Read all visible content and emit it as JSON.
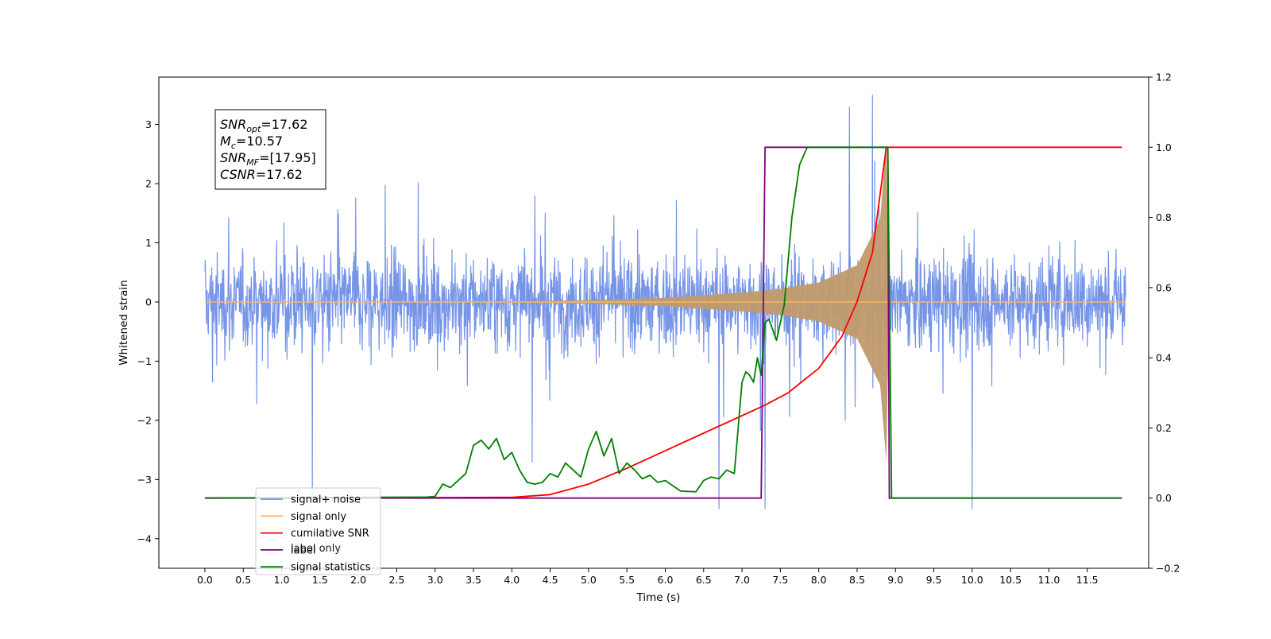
{
  "chart_data": {
    "type": "line",
    "xlabel": "Time (s)",
    "ylabel_left": "Whitened strain",
    "ylabel_right": "",
    "xlim": [
      -0.6,
      12.3
    ],
    "ylim_left": [
      -4.5,
      3.8
    ],
    "ylim_right": [
      -0.2,
      1.2
    ],
    "x_ticks": [
      0.0,
      0.5,
      1.0,
      1.5,
      2.0,
      2.5,
      3.0,
      3.5,
      4.0,
      4.5,
      5.0,
      5.5,
      6.0,
      6.5,
      7.0,
      7.5,
      8.0,
      8.5,
      9.0,
      9.5,
      10.0,
      10.5,
      11.0,
      11.5
    ],
    "x_tick_labels": [
      "0.0",
      "0.5",
      "1.0",
      "1.5",
      "2.0",
      "2.5",
      "3.0",
      "3.5",
      "4.0",
      "4.5",
      "5.0",
      "5.5",
      "6.0",
      "6.5",
      "7.0",
      "7.5",
      "8.0",
      "8.5",
      "9.0",
      "9.5",
      "10.0",
      "10.5",
      "11.0",
      "11.5"
    ],
    "y_ticks_left": [
      -4,
      -3,
      -2,
      -1,
      0,
      1,
      2,
      3
    ],
    "y_tick_labels_left": [
      "−4",
      "−3",
      "−2",
      "−1",
      "0",
      "1",
      "2",
      "3"
    ],
    "y_ticks_right": [
      -0.2,
      0.0,
      0.2,
      0.4,
      0.6,
      0.8,
      1.0,
      1.2
    ],
    "y_tick_labels_right": [
      "−0.2",
      "0.0",
      "0.2",
      "0.4",
      "0.6",
      "0.8",
      "1.0",
      "1.2"
    ],
    "grid": false,
    "legend_position": "lower-left",
    "series": [
      {
        "name": "signal+ noise",
        "axis": "left",
        "color": "#6f8fe6",
        "kind": "noisy strain",
        "x_range": [
          0.0,
          12.0
        ],
        "typical_amplitude": [
          -1.3,
          1.8
        ],
        "peak_values": [
          [
            8.7,
            3.5
          ],
          [
            7.3,
            -3.5
          ],
          [
            6.7,
            -3.5
          ],
          [
            1.4,
            -3.3
          ],
          [
            10.0,
            -3.5
          ],
          [
            8.4,
            3.3
          ]
        ]
      },
      {
        "name": "signal only",
        "axis": "left",
        "color": "#f5b866",
        "kind": "chirp",
        "x_range": [
          0.0,
          12.0
        ],
        "envelope": [
          [
            0.0,
            0.0
          ],
          [
            4.0,
            0.01
          ],
          [
            5.0,
            0.03
          ],
          [
            6.0,
            0.07
          ],
          [
            7.0,
            0.16
          ],
          [
            7.5,
            0.22
          ],
          [
            8.0,
            0.33
          ],
          [
            8.5,
            0.62
          ],
          [
            8.8,
            1.4
          ],
          [
            8.88,
            2.7
          ],
          [
            8.92,
            0.0
          ],
          [
            12.0,
            0.0
          ]
        ]
      },
      {
        "name": "cumilative SNR",
        "axis": "right",
        "color": "#ff0000",
        "x": [
          0.0,
          4.0,
          4.5,
          5.0,
          5.5,
          6.0,
          6.5,
          7.0,
          7.3,
          7.6,
          8.0,
          8.3,
          8.5,
          8.7,
          8.85,
          8.88,
          9.0,
          10.0,
          11.0,
          11.95
        ],
        "y": [
          0.0,
          0.002,
          0.01,
          0.04,
          0.085,
          0.135,
          0.185,
          0.235,
          0.265,
          0.3,
          0.37,
          0.46,
          0.56,
          0.7,
          0.95,
          1.0,
          1.0,
          1.0,
          1.0,
          1.0
        ]
      },
      {
        "name": "label",
        "axis": "right",
        "color": "#800080",
        "x": [
          0.0,
          7.25,
          7.3,
          8.9,
          8.92,
          11.95
        ],
        "y": [
          0.0,
          0.0,
          1.0,
          1.0,
          0.0,
          0.0
        ]
      },
      {
        "name": "signal statistics",
        "axis": "right",
        "color": "#008000",
        "x": [
          0.0,
          2.9,
          3.0,
          3.1,
          3.2,
          3.3,
          3.4,
          3.5,
          3.6,
          3.7,
          3.8,
          3.9,
          4.0,
          4.1,
          4.2,
          4.3,
          4.4,
          4.5,
          4.6,
          4.7,
          4.8,
          4.9,
          5.0,
          5.1,
          5.2,
          5.3,
          5.4,
          5.5,
          5.6,
          5.7,
          5.8,
          5.9,
          6.0,
          6.1,
          6.2,
          6.4,
          6.5,
          6.6,
          6.7,
          6.8,
          6.9,
          7.0,
          7.05,
          7.1,
          7.15,
          7.2,
          7.25,
          7.3,
          7.35,
          7.45,
          7.55,
          7.65,
          7.75,
          7.85,
          8.0,
          8.2,
          8.9,
          8.95,
          11.95
        ],
        "y": [
          0.0,
          0.003,
          0.005,
          0.04,
          0.03,
          0.05,
          0.07,
          0.15,
          0.165,
          0.14,
          0.17,
          0.11,
          0.13,
          0.08,
          0.045,
          0.04,
          0.045,
          0.07,
          0.06,
          0.1,
          0.08,
          0.06,
          0.14,
          0.19,
          0.12,
          0.17,
          0.07,
          0.1,
          0.08,
          0.055,
          0.065,
          0.045,
          0.05,
          0.035,
          0.02,
          0.018,
          0.05,
          0.06,
          0.055,
          0.08,
          0.07,
          0.33,
          0.36,
          0.35,
          0.33,
          0.4,
          0.35,
          0.5,
          0.51,
          0.45,
          0.55,
          0.8,
          0.95,
          1.0,
          1.0,
          1.0,
          1.0,
          0.0,
          0.0
        ]
      },
      {
        "name": "label only",
        "axis": "right",
        "color": "#800080",
        "kind": "legend-only (drawn under another legend entry)"
      }
    ],
    "annotations": {
      "lines": [
        {
          "var": "SNR",
          "sub": "opt",
          "value": "=17.62"
        },
        {
          "var": "M",
          "sub": "c",
          "value": "=10.57"
        },
        {
          "var": "SNR",
          "sub": "MF",
          "value": "=[17.95]"
        },
        {
          "var": "CSNR",
          "sub": "",
          "value": "=17.62"
        }
      ]
    }
  }
}
